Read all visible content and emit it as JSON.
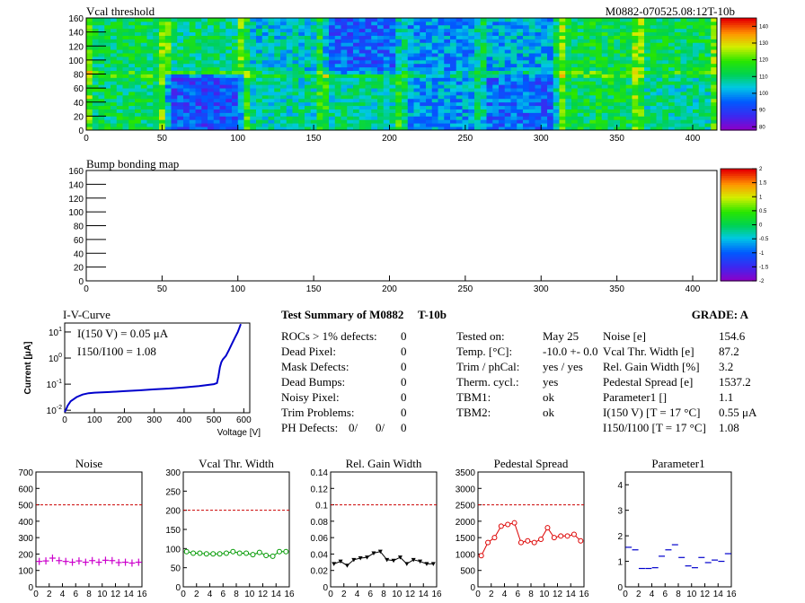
{
  "colors": {
    "axis": "#000000",
    "ref_line": "#cc0000",
    "iv_curve": "#0000cc",
    "ph_red": "#e00000",
    "ph_blue": "#0000e0"
  },
  "panels": {
    "vcal_map": {
      "title": "Vcal threshold",
      "module_label": "M0882-070525.08:12T-10b"
    },
    "bump_map": {
      "title": "Bump bonding map"
    },
    "iv": {
      "title": "I-V-Curve",
      "ylabel": "Current [μA]",
      "xlabel": "Voltage [V]",
      "label_i": "I(150 V) = 0.05 μA",
      "label_ratio": "I150/I100 =  1.08"
    }
  },
  "summary": {
    "title": "Test Summary of M0882",
    "module_type": "T-10b",
    "grade": "GRADE:  A",
    "left": [
      {
        "label": "ROCs > 1% defects:",
        "value": "0"
      },
      {
        "label": "Dead Pixel:",
        "value": "0"
      },
      {
        "label": "Mask Defects:",
        "value": "0"
      },
      {
        "label": "Dead Bumps:",
        "value": "0"
      },
      {
        "label": "Noisy Pixel:",
        "value": "0"
      },
      {
        "label": "Trim Problems:",
        "value": "0"
      }
    ],
    "ph": {
      "label": "PH Defects:",
      "v1": "0/",
      "v2": "0/",
      "v3": "0"
    },
    "mid": [
      {
        "label": "Tested on:",
        "value": "May 25"
      },
      {
        "label": "Temp. [°C]:",
        "value": "-10.0 +- 0.0"
      },
      {
        "label": "Trim / phCal:",
        "value": "yes / yes"
      },
      {
        "label": "Therm. cycl.:",
        "value": "yes"
      },
      {
        "label": "TBM1:",
        "value": "ok"
      },
      {
        "label": "TBM2:",
        "value": "ok"
      }
    ],
    "right": [
      {
        "label": "Noise [e]",
        "value": "154.6"
      },
      {
        "label": "Vcal Thr. Width [e]",
        "value": "87.2"
      },
      {
        "label": "Rel. Gain Width [%]",
        "value": "3.2"
      },
      {
        "label": "Pedestal Spread [e]",
        "value": "1537.2"
      },
      {
        "label": "Parameter1 []",
        "value": "1.1"
      },
      {
        "label": "I(150 V) [T = 17 °C]",
        "value": "0.55 μA"
      },
      {
        "label": "I150/I100  [T = 17 °C]",
        "value": "1.08"
      }
    ]
  },
  "chart_data": [
    {
      "type": "heatmap",
      "title": "Vcal threshold",
      "xlim": [
        0,
        416
      ],
      "ylim": [
        0,
        160
      ],
      "x_ticks": [
        "0",
        "50",
        "100",
        "150",
        "200",
        "250",
        "300",
        "350",
        "400"
      ],
      "y_ticks": [
        "0",
        "20",
        "40",
        "60",
        "80",
        "100",
        "120",
        "140",
        "160"
      ],
      "z_ticks": [
        "80",
        "90",
        "100",
        "110",
        "120",
        "130",
        "140"
      ],
      "zlim": [
        78,
        145
      ],
      "roc_means_top": [
        112,
        110,
        104,
        94,
        99,
        101,
        113,
        112
      ],
      "roc_means_bottom": [
        112,
        92,
        107,
        108,
        100,
        95,
        113,
        108
      ]
    },
    {
      "type": "heatmap",
      "title": "Bump bonding map",
      "xlim": [
        0,
        416
      ],
      "ylim": [
        0,
        160
      ],
      "x_ticks": [
        "0",
        "50",
        "100",
        "150",
        "200",
        "250",
        "300",
        "350",
        "400"
      ],
      "y_ticks": [
        "0",
        "20",
        "40",
        "60",
        "80",
        "100",
        "120",
        "140",
        "160"
      ],
      "z_ticks": [
        "-2",
        "-1.5",
        "-1",
        "-0.5",
        "0",
        "0.5",
        "1",
        "1.5",
        "2"
      ],
      "zlim": [
        -2,
        2
      ]
    },
    {
      "type": "line",
      "title": "I-V-Curve",
      "xlabel": "Voltage [V]",
      "ylabel": "Current [μA]",
      "log_y": true,
      "xlim": [
        0,
        620
      ],
      "ylim": [
        0.008,
        22
      ],
      "x_ticks": [
        "0",
        "100",
        "200",
        "300",
        "400",
        "500",
        "600"
      ],
      "x": [
        0,
        5,
        10,
        20,
        40,
        60,
        80,
        100,
        150,
        200,
        250,
        300,
        350,
        400,
        450,
        500,
        510,
        515,
        520,
        525,
        530,
        540,
        550,
        560,
        570,
        580,
        590
      ],
      "y": [
        0.0085,
        0.011,
        0.015,
        0.022,
        0.032,
        0.04,
        0.045,
        0.047,
        0.05,
        0.054,
        0.058,
        0.063,
        0.068,
        0.075,
        0.085,
        0.1,
        0.11,
        0.2,
        0.45,
        0.7,
        0.9,
        1.2,
        2,
        3.5,
        6,
        10,
        20
      ]
    },
    {
      "type": "scatter",
      "title": "Noise",
      "xlim": [
        0,
        16
      ],
      "ylim": [
        0,
        700
      ],
      "x_ticks": [
        "0",
        "2",
        "4",
        "6",
        "8",
        "10",
        "12",
        "14",
        "16"
      ],
      "y_ticks": [
        "0",
        "100",
        "200",
        "300",
        "400",
        "500",
        "600",
        "700"
      ],
      "ref": 500,
      "color": "#cc00cc",
      "values": [
        155,
        158,
        175,
        160,
        155,
        150,
        158,
        150,
        160,
        150,
        162,
        160,
        148,
        150,
        145,
        150
      ]
    },
    {
      "type": "line",
      "title": "Vcal Thr. Width",
      "xlim": [
        0,
        16
      ],
      "ylim": [
        0,
        300
      ],
      "x_ticks": [
        "0",
        "2",
        "4",
        "6",
        "8",
        "10",
        "12",
        "14",
        "16"
      ],
      "y_ticks": [
        "0",
        "50",
        "100",
        "150",
        "200",
        "250",
        "300"
      ],
      "ref": 200,
      "color": "#009900",
      "values": [
        92,
        88,
        88,
        86,
        86,
        86,
        88,
        92,
        88,
        88,
        84,
        90,
        82,
        80,
        92,
        92
      ]
    },
    {
      "type": "line",
      "title": "Rel. Gain Width",
      "xlim": [
        0,
        16
      ],
      "ylim": [
        0,
        0.14
      ],
      "x_ticks": [
        "0",
        "2",
        "4",
        "6",
        "8",
        "10",
        "12",
        "14",
        "16"
      ],
      "y_ticks": [
        "0",
        "0.02",
        "0.04",
        "0.06",
        "0.08",
        "0.1",
        "0.12",
        "0.14"
      ],
      "ref": 0.1,
      "color": "#000000",
      "values": [
        0.028,
        0.031,
        0.026,
        0.033,
        0.035,
        0.036,
        0.041,
        0.043,
        0.033,
        0.032,
        0.036,
        0.028,
        0.033,
        0.031,
        0.028,
        0.028
      ]
    },
    {
      "type": "line",
      "title": "Pedestal Spread",
      "xlim": [
        0,
        16
      ],
      "ylim": [
        0,
        3500
      ],
      "x_ticks": [
        "0",
        "2",
        "4",
        "6",
        "8",
        "10",
        "12",
        "14",
        "16"
      ],
      "y_ticks": [
        "0",
        "500",
        "1000",
        "1500",
        "2000",
        "2500",
        "3000",
        "3500"
      ],
      "ref": 2500,
      "color": "#dd0000",
      "values": [
        950,
        1350,
        1500,
        1850,
        1900,
        1950,
        1350,
        1400,
        1350,
        1450,
        1800,
        1500,
        1550,
        1550,
        1600,
        1400
      ]
    },
    {
      "type": "scatter",
      "title": "Parameter1",
      "xlim": [
        0,
        16
      ],
      "ylim": [
        0,
        4.5
      ],
      "x_ticks": [
        "0",
        "2",
        "4",
        "6",
        "8",
        "10",
        "12",
        "14",
        "16"
      ],
      "y_ticks": [
        "0",
        "1",
        "2",
        "3",
        "4"
      ],
      "ref": null,
      "color": "#0000cc",
      "values": [
        1.55,
        1.45,
        0.72,
        0.72,
        0.75,
        1.2,
        1.45,
        1.65,
        1.15,
        0.82,
        0.75,
        1.15,
        0.95,
        1.05,
        1.0,
        1.3
      ]
    }
  ]
}
